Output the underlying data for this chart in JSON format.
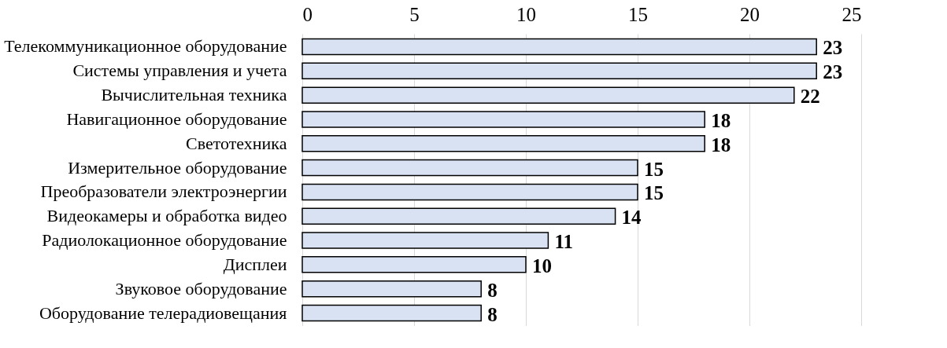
{
  "chart_data": {
    "type": "bar",
    "orientation": "horizontal",
    "categories": [
      "Телекоммуникационное оборудование",
      "Системы управления и учета",
      "Вычислительная техника",
      "Навигационное оборудование",
      "Светотехника",
      "Измерительное оборудование",
      "Преобразователи электроэнергии",
      "Видеокамеры и обработка видео",
      "Радиолокационное оборудование",
      "Дисплеи",
      "Звуковое оборудование",
      "Оборудование телерадиовещания"
    ],
    "values": [
      23,
      23,
      22,
      18,
      18,
      15,
      15,
      14,
      11,
      10,
      8,
      8
    ],
    "color": "#d9e2f3",
    "xlim": [
      0,
      25
    ],
    "xticks": [
      0,
      5,
      10,
      15,
      20,
      25
    ],
    "grid": "x",
    "data_labels": true
  }
}
